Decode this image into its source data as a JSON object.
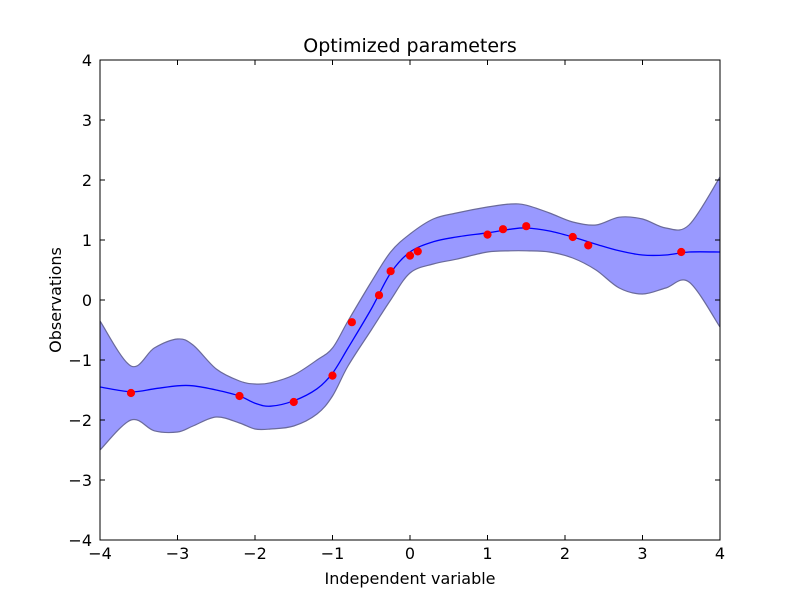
{
  "chart_data": {
    "type": "line",
    "title": "Optimized parameters",
    "xlabel": "Independent variable",
    "ylabel": "Observations",
    "xlim": [
      -4,
      4
    ],
    "ylim": [
      -4,
      4
    ],
    "grid": false,
    "x_ticks": [
      -4,
      -3,
      -2,
      -1,
      0,
      1,
      2,
      3,
      4
    ],
    "y_ticks": [
      -4,
      -3,
      -2,
      -1,
      0,
      1,
      2,
      3,
      4
    ],
    "x_tick_labels": [
      "−4",
      "−3",
      "−2",
      "−1",
      "0",
      "1",
      "2",
      "3",
      "4"
    ],
    "y_tick_labels": [
      "−4",
      "−3",
      "−2",
      "−1",
      "0",
      "1",
      "2",
      "3",
      "4"
    ],
    "colors": {
      "mean_line": "#0000ff",
      "band_fill": "#9999ff",
      "band_edge": "#6a6a9a",
      "points": "#ff0000"
    },
    "series": [
      {
        "kind": "line",
        "x": [
          -4.0,
          -3.6,
          -3.3,
          -3.0,
          -2.8,
          -2.5,
          -2.2,
          -2.0,
          -1.8,
          -1.5,
          -1.2,
          -1.0,
          -0.8,
          -0.5,
          -0.25,
          0.0,
          0.3,
          0.6,
          1.0,
          1.3,
          1.5,
          1.8,
          2.1,
          2.4,
          2.7,
          3.0,
          3.3,
          3.6,
          4.0
        ],
        "y": [
          -1.45,
          -1.53,
          -1.48,
          -1.43,
          -1.43,
          -1.5,
          -1.6,
          -1.72,
          -1.77,
          -1.68,
          -1.48,
          -1.22,
          -0.8,
          -0.15,
          0.45,
          0.8,
          0.97,
          1.05,
          1.12,
          1.18,
          1.2,
          1.15,
          1.05,
          0.93,
          0.82,
          0.75,
          0.75,
          0.8,
          0.8
        ]
      },
      {
        "kind": "band",
        "x": [
          -4.0,
          -3.6,
          -3.3,
          -3.0,
          -2.8,
          -2.5,
          -2.2,
          -2.0,
          -1.8,
          -1.5,
          -1.2,
          -1.0,
          -0.8,
          -0.5,
          -0.25,
          0.0,
          0.3,
          0.6,
          1.0,
          1.3,
          1.5,
          1.8,
          2.1,
          2.4,
          2.7,
          3.0,
          3.3,
          3.6,
          4.0
        ],
        "upper": [
          -0.35,
          -1.1,
          -0.8,
          -0.65,
          -0.75,
          -1.15,
          -1.35,
          -1.4,
          -1.38,
          -1.25,
          -1.0,
          -0.8,
          -0.35,
          0.3,
          0.8,
          1.1,
          1.35,
          1.45,
          1.55,
          1.6,
          1.58,
          1.45,
          1.3,
          1.25,
          1.38,
          1.35,
          1.2,
          1.25,
          2.05
        ],
        "lower": [
          -2.5,
          -2.0,
          -2.18,
          -2.2,
          -2.1,
          -1.95,
          -2.05,
          -2.15,
          -2.15,
          -2.1,
          -1.9,
          -1.6,
          -1.1,
          -0.5,
          0.0,
          0.45,
          0.6,
          0.68,
          0.8,
          0.82,
          0.82,
          0.8,
          0.7,
          0.5,
          0.2,
          0.1,
          0.2,
          0.3,
          -0.45
        ]
      },
      {
        "kind": "scatter",
        "x": [
          -3.6,
          -2.2,
          -1.5,
          -1.0,
          -0.75,
          -0.4,
          -0.25,
          0.0,
          0.1,
          1.0,
          1.2,
          1.5,
          2.1,
          2.3,
          3.5
        ],
        "y": [
          -1.55,
          -1.6,
          -1.7,
          -1.26,
          -0.37,
          0.08,
          0.48,
          0.74,
          0.81,
          1.09,
          1.18,
          1.23,
          1.05,
          0.91,
          0.8
        ]
      }
    ]
  }
}
